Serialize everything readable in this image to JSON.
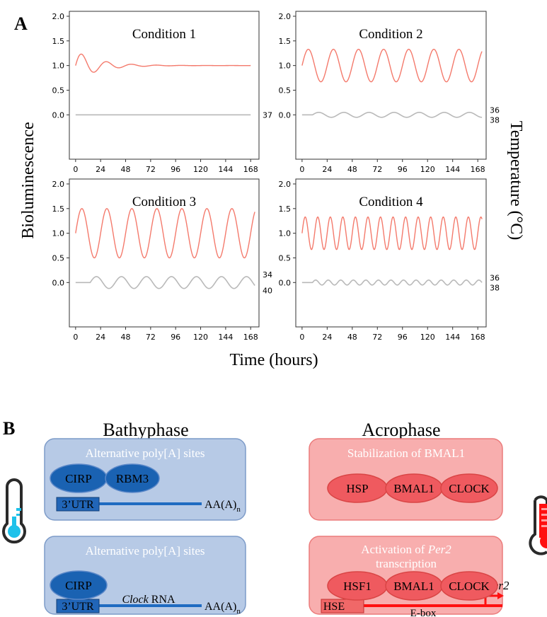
{
  "panel_a": {
    "label": "A",
    "y_axis_label": "Bioluminescence",
    "right_axis_label": "Temperature (°C)",
    "x_axis_label": "Time (hours)"
  },
  "chart_data": [
    {
      "type": "line",
      "title": "Condition 1",
      "xlabel": "Time (hours)",
      "ylabel": "Bioluminescence",
      "xlim": [
        -6,
        176
      ],
      "ylim": [
        -0.9,
        2.1
      ],
      "x_ticks": [
        0,
        24,
        48,
        72,
        96,
        120,
        144,
        168
      ],
      "y_ticks": [
        0.0,
        0.5,
        1.0,
        1.5,
        2.0
      ],
      "y_tick_labels": [
        "0.0",
        "0.5",
        "1.0",
        "1.5",
        "2.0"
      ],
      "series": [
        {
          "name": "",
          "color": "#f47a6c",
          "x_range": [
            0,
            168
          ],
          "baseline": 1.0,
          "amplitude": 0.3,
          "period_h": 24,
          "phase": "sin",
          "damping_per_h": 0.045
        },
        {
          "name": "",
          "color": "#b9b9b9",
          "x_range": [
            0,
            168
          ],
          "baseline": 0.0,
          "amplitude": 0.0,
          "period_h": 24,
          "start_h": 0
        }
      ],
      "temperature_labels": [
        "37"
      ]
    },
    {
      "type": "line",
      "title": "Condition 2",
      "xlabel": "Time (hours)",
      "ylabel": "Bioluminescence",
      "xlim": [
        -6,
        176
      ],
      "ylim": [
        -0.9,
        2.1
      ],
      "x_ticks": [
        0,
        24,
        48,
        72,
        96,
        120,
        144,
        168
      ],
      "y_ticks": [
        0.0,
        0.5,
        1.0,
        1.5,
        2.0
      ],
      "y_tick_labels": [
        "0.0",
        "0.5",
        "1.0",
        "1.5",
        "2.0"
      ],
      "series": [
        {
          "name": "",
          "color": "#f47a6c",
          "x_range": [
            0,
            172
          ],
          "baseline": 1.0,
          "amplitude": 0.33,
          "period_h": 24,
          "phase": "sin",
          "damping_per_h": 0
        },
        {
          "name": "",
          "color": "#b9b9b9",
          "x_range": [
            0,
            172
          ],
          "baseline": 0.0,
          "amplitude": 0.05,
          "period_h": 24,
          "start_h": 10
        }
      ],
      "temperature_labels": [
        "38",
        "36"
      ]
    },
    {
      "type": "line",
      "title": "Condition 3",
      "xlabel": "Time (hours)",
      "ylabel": "Bioluminescence",
      "xlim": [
        -6,
        176
      ],
      "ylim": [
        -0.9,
        2.1
      ],
      "x_ticks": [
        0,
        24,
        48,
        72,
        96,
        120,
        144,
        168
      ],
      "y_ticks": [
        0.0,
        0.5,
        1.0,
        1.5,
        2.0
      ],
      "y_tick_labels": [
        "0.0",
        "0.5",
        "1.0",
        "1.5",
        "2.0"
      ],
      "series": [
        {
          "name": "",
          "color": "#f47a6c",
          "x_range": [
            0,
            172
          ],
          "baseline": 1.0,
          "amplitude": 0.5,
          "period_h": 24,
          "phase": "sin",
          "damping_per_h": 0
        },
        {
          "name": "",
          "color": "#b9b9b9",
          "x_range": [
            0,
            172
          ],
          "baseline": 0.0,
          "amplitude": 0.12,
          "period_h": 24,
          "start_h": 14
        }
      ],
      "temperature_labels": [
        "40",
        "34"
      ]
    },
    {
      "type": "line",
      "title": "Condition 4",
      "xlabel": "Time (hours)",
      "ylabel": "Bioluminescence",
      "xlim": [
        -6,
        176
      ],
      "ylim": [
        -0.9,
        2.1
      ],
      "x_ticks": [
        0,
        24,
        48,
        72,
        96,
        120,
        144,
        168
      ],
      "y_ticks": [
        0.0,
        0.5,
        1.0,
        1.5,
        2.0
      ],
      "y_tick_labels": [
        "0.0",
        "0.5",
        "1.0",
        "1.5",
        "2.0"
      ],
      "series": [
        {
          "name": "",
          "color": "#f47a6c",
          "x_range": [
            0,
            172
          ],
          "baseline": 1.0,
          "amplitude": 0.33,
          "period_h": 12,
          "phase": "sin",
          "damping_per_h": 0
        },
        {
          "name": "",
          "color": "#b9b9b9",
          "x_range": [
            0,
            172
          ],
          "baseline": 0.0,
          "amplitude": 0.05,
          "period_h": 12,
          "start_h": 10
        }
      ],
      "temperature_labels": [
        "38",
        "36"
      ]
    }
  ],
  "panel_b": {
    "label": "B",
    "left_title": "Bathyphase",
    "right_title": "Acrophase",
    "colors": {
      "blue_box": "#b7cae6",
      "blue_edge": "#7d9bc8",
      "blue_ellipse": "#1a62b2",
      "blue_line": "#1f6bc1",
      "red_box": "#f8aeae",
      "red_edge": "#eb7b7b",
      "red_ellipse": "#ef5a5f",
      "red_line": "#ff1010",
      "thermo_cold": "#1ec1ea",
      "thermo_hot": "#ff1010"
    },
    "boxes": [
      {
        "title": "Alternative poly[A] sites",
        "proteins": [
          "CIRP",
          "RBM3"
        ],
        "utr": "3’UTR",
        "polyA": "AA(A)",
        "polyA_sub": "n"
      },
      {
        "title": "Alternative poly[A] sites",
        "proteins": [
          "CIRP"
        ],
        "utr": "3’UTR",
        "rna_italic": "Clock",
        "rna_rest": " RNA",
        "polyA": "AA(A)",
        "polyA_sub": "n"
      },
      {
        "title": "Stabilization of BMAL1",
        "proteins": [
          "HSP",
          "BMAL1",
          "CLOCK"
        ]
      },
      {
        "title_a": "Activation of ",
        "title_italic": "Per2",
        "title_line2": "transcription",
        "proteins": [
          "HSF1",
          "BMAL1",
          "CLOCK"
        ],
        "hse": "HSE",
        "ebox": "E-box",
        "gene": "Per2"
      }
    ],
    "thermometers": [
      {
        "name": "cold",
        "level": 0.3
      },
      {
        "name": "hot",
        "level": 0.8
      }
    ]
  }
}
